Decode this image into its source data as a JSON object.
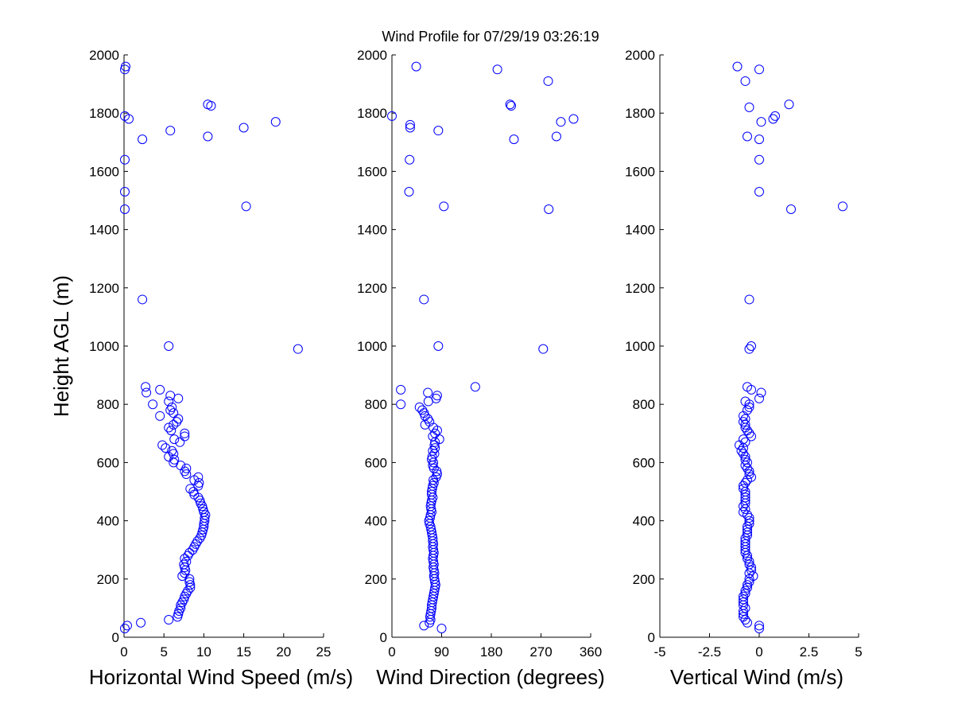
{
  "title": "Wind Profile for  07/29/19 03:26:19",
  "ylabel": "Height AGL (m)",
  "chart_data": [
    {
      "type": "scatter",
      "xlabel": "Horizontal Wind Speed (m/s)",
      "ylabel": "Height AGL (m)",
      "xlim": [
        0,
        25
      ],
      "ylim": [
        0,
        2000
      ],
      "xticks": [
        0,
        5,
        10,
        15,
        20,
        25
      ],
      "xtick_labels": [
        "0",
        "5",
        "10",
        "15",
        "20",
        "25"
      ],
      "yticks": [
        0,
        200,
        400,
        600,
        800,
        1000,
        1200,
        1400,
        1600,
        1800,
        2000
      ],
      "ytick_labels": [
        "0",
        "200",
        "400",
        "600",
        "800",
        "1000",
        "1200",
        "1400",
        "1600",
        "1800",
        "2000"
      ],
      "color": "#0000ff",
      "marker": "circle-open",
      "points": [
        [
          0.2,
          1960
        ],
        [
          0.1,
          1950
        ],
        [
          10.5,
          1830
        ],
        [
          10.9,
          1825
        ],
        [
          0.1,
          1790
        ],
        [
          0.6,
          1780
        ],
        [
          19,
          1770
        ],
        [
          15,
          1750
        ],
        [
          5.8,
          1740
        ],
        [
          10.5,
          1720
        ],
        [
          2.3,
          1710
        ],
        [
          0.1,
          1640
        ],
        [
          0.1,
          1530
        ],
        [
          15.3,
          1480
        ],
        [
          0.1,
          1470
        ],
        [
          2.3,
          1160
        ],
        [
          5.6,
          1000
        ],
        [
          21.8,
          990
        ],
        [
          2.7,
          860
        ],
        [
          4.5,
          850
        ],
        [
          2.8,
          840
        ],
        [
          5.8,
          830
        ],
        [
          6.8,
          820
        ],
        [
          5.6,
          810
        ],
        [
          3.6,
          800
        ],
        [
          6,
          790
        ],
        [
          5.8,
          780
        ],
        [
          6.2,
          770
        ],
        [
          4.5,
          760
        ],
        [
          6.8,
          750
        ],
        [
          6.6,
          740
        ],
        [
          6.2,
          730
        ],
        [
          5.6,
          720
        ],
        [
          5.9,
          710
        ],
        [
          7.6,
          700
        ],
        [
          7.6,
          690
        ],
        [
          6.3,
          680
        ],
        [
          7,
          670
        ],
        [
          4.8,
          660
        ],
        [
          5.2,
          650
        ],
        [
          6,
          640
        ],
        [
          6.2,
          630
        ],
        [
          5.6,
          620
        ],
        [
          6.3,
          610
        ],
        [
          6.2,
          600
        ],
        [
          7.1,
          590
        ],
        [
          7.8,
          580
        ],
        [
          7.6,
          570
        ],
        [
          7.8,
          560
        ],
        [
          9.3,
          550
        ],
        [
          8.8,
          540
        ],
        [
          9.4,
          530
        ],
        [
          9.3,
          520
        ],
        [
          8.3,
          510
        ],
        [
          8.7,
          500
        ],
        [
          8.8,
          490
        ],
        [
          9.3,
          480
        ],
        [
          9.5,
          470
        ],
        [
          9.6,
          460
        ],
        [
          9.8,
          450
        ],
        [
          9.9,
          440
        ],
        [
          10,
          430
        ],
        [
          10.2,
          420
        ],
        [
          10.1,
          410
        ],
        [
          10.1,
          400
        ],
        [
          10,
          390
        ],
        [
          10,
          380
        ],
        [
          9.9,
          370
        ],
        [
          9.8,
          360
        ],
        [
          9.7,
          350
        ],
        [
          9.5,
          340
        ],
        [
          9.2,
          330
        ],
        [
          9,
          320
        ],
        [
          8.8,
          310
        ],
        [
          8.6,
          300
        ],
        [
          8.2,
          290
        ],
        [
          8,
          280
        ],
        [
          7.6,
          270
        ],
        [
          7.8,
          260
        ],
        [
          7.5,
          250
        ],
        [
          7.6,
          240
        ],
        [
          7.7,
          230
        ],
        [
          7.6,
          220
        ],
        [
          7.3,
          210
        ],
        [
          8.2,
          200
        ],
        [
          8.2,
          190
        ],
        [
          8.3,
          180
        ],
        [
          8.3,
          170
        ],
        [
          8,
          160
        ],
        [
          7.8,
          150
        ],
        [
          7.6,
          140
        ],
        [
          7.5,
          130
        ],
        [
          7.3,
          120
        ],
        [
          7.1,
          110
        ],
        [
          7.1,
          100
        ],
        [
          6.9,
          90
        ],
        [
          6.8,
          80
        ],
        [
          6.7,
          70
        ],
        [
          5.6,
          60
        ],
        [
          2.1,
          50
        ],
        [
          0.4,
          40
        ],
        [
          0.1,
          30
        ]
      ]
    },
    {
      "type": "scatter",
      "xlabel": "Wind Direction (degrees)",
      "xlim": [
        0,
        360
      ],
      "ylim": [
        0,
        2000
      ],
      "xticks": [
        0,
        90,
        180,
        270,
        360
      ],
      "xtick_labels": [
        "0",
        "90",
        "180",
        "270",
        "360"
      ],
      "yticks": [
        0,
        200,
        400,
        600,
        800,
        1000,
        1200,
        1400,
        1600,
        1800,
        2000
      ],
      "ytick_labels": [
        "0",
        "200",
        "400",
        "600",
        "800",
        "1000",
        "1200",
        "1400",
        "1600",
        "1800",
        "2000"
      ],
      "color": "#0000ff",
      "marker": "circle-open",
      "points": [
        [
          44,
          1960
        ],
        [
          191,
          1950
        ],
        [
          283,
          1910
        ],
        [
          214,
          1830
        ],
        [
          216,
          1825
        ],
        [
          0,
          1790
        ],
        [
          329,
          1780
        ],
        [
          306,
          1770
        ],
        [
          33,
          1760
        ],
        [
          33,
          1750
        ],
        [
          84,
          1740
        ],
        [
          298,
          1720
        ],
        [
          221,
          1710
        ],
        [
          32,
          1640
        ],
        [
          31,
          1530
        ],
        [
          94,
          1480
        ],
        [
          284,
          1470
        ],
        [
          58,
          1160
        ],
        [
          84,
          1000
        ],
        [
          274,
          990
        ],
        [
          151,
          860
        ],
        [
          16,
          850
        ],
        [
          65,
          840
        ],
        [
          82,
          830
        ],
        [
          80,
          820
        ],
        [
          66,
          810
        ],
        [
          16,
          800
        ],
        [
          50,
          790
        ],
        [
          55,
          780
        ],
        [
          58,
          770
        ],
        [
          60,
          760
        ],
        [
          65,
          750
        ],
        [
          68,
          740
        ],
        [
          60,
          730
        ],
        [
          75,
          720
        ],
        [
          82,
          710
        ],
        [
          78,
          700
        ],
        [
          74,
          690
        ],
        [
          86,
          680
        ],
        [
          78,
          670
        ],
        [
          77,
          660
        ],
        [
          78,
          650
        ],
        [
          74,
          640
        ],
        [
          77,
          630
        ],
        [
          73,
          620
        ],
        [
          72,
          610
        ],
        [
          75,
          600
        ],
        [
          74,
          590
        ],
        [
          76,
          580
        ],
        [
          81,
          570
        ],
        [
          82,
          560
        ],
        [
          80,
          550
        ],
        [
          75,
          540
        ],
        [
          76,
          530
        ],
        [
          74,
          520
        ],
        [
          73,
          510
        ],
        [
          72,
          500
        ],
        [
          72,
          490
        ],
        [
          74,
          480
        ],
        [
          72,
          470
        ],
        [
          71,
          460
        ],
        [
          70,
          450
        ],
        [
          71,
          440
        ],
        [
          72,
          430
        ],
        [
          70,
          420
        ],
        [
          69,
          410
        ],
        [
          67,
          400
        ],
        [
          68,
          390
        ],
        [
          70,
          380
        ],
        [
          71,
          370
        ],
        [
          72,
          360
        ],
        [
          73,
          350
        ],
        [
          74,
          340
        ],
        [
          74,
          330
        ],
        [
          75,
          320
        ],
        [
          74,
          310
        ],
        [
          75,
          300
        ],
        [
          76,
          290
        ],
        [
          75,
          280
        ],
        [
          74,
          270
        ],
        [
          75,
          260
        ],
        [
          76,
          250
        ],
        [
          75,
          240
        ],
        [
          76,
          230
        ],
        [
          77,
          220
        ],
        [
          76,
          210
        ],
        [
          77,
          200
        ],
        [
          78,
          190
        ],
        [
          79,
          180
        ],
        [
          78,
          170
        ],
        [
          77,
          160
        ],
        [
          76,
          150
        ],
        [
          75,
          140
        ],
        [
          74,
          130
        ],
        [
          73,
          120
        ],
        [
          72,
          110
        ],
        [
          72,
          100
        ],
        [
          71,
          90
        ],
        [
          70,
          80
        ],
        [
          69,
          70
        ],
        [
          70,
          60
        ],
        [
          68,
          50
        ],
        [
          58,
          40
        ],
        [
          90,
          30
        ]
      ]
    },
    {
      "type": "scatter",
      "xlabel": "Vertical Wind (m/s)",
      "xlim": [
        -5,
        5
      ],
      "ylim": [
        0,
        2000
      ],
      "xticks": [
        -5,
        -2.5,
        0,
        2.5,
        5
      ],
      "xtick_labels": [
        "-5",
        "-2.5",
        "0",
        "2.5",
        "5"
      ],
      "yticks": [
        0,
        200,
        400,
        600,
        800,
        1000,
        1200,
        1400,
        1600,
        1800,
        2000
      ],
      "ytick_labels": [
        "0",
        "200",
        "400",
        "600",
        "800",
        "1000",
        "1200",
        "1400",
        "1600",
        "1800",
        "2000"
      ],
      "color": "#0000ff",
      "marker": "circle-open",
      "points": [
        [
          -1.1,
          1960
        ],
        [
          0,
          1950
        ],
        [
          -0.7,
          1910
        ],
        [
          1.5,
          1830
        ],
        [
          -0.5,
          1820
        ],
        [
          0.8,
          1790
        ],
        [
          0.7,
          1780
        ],
        [
          0.1,
          1770
        ],
        [
          -0.6,
          1720
        ],
        [
          0,
          1710
        ],
        [
          0,
          1640
        ],
        [
          0,
          1530
        ],
        [
          4.2,
          1480
        ],
        [
          1.6,
          1470
        ],
        [
          -0.5,
          1160
        ],
        [
          -0.4,
          1000
        ],
        [
          -0.5,
          990
        ],
        [
          -0.6,
          860
        ],
        [
          -0.4,
          850
        ],
        [
          0.1,
          840
        ],
        [
          0,
          820
        ],
        [
          -0.7,
          810
        ],
        [
          -0.5,
          800
        ],
        [
          -0.5,
          790
        ],
        [
          -0.6,
          780
        ],
        [
          -0.8,
          760
        ],
        [
          -0.7,
          750
        ],
        [
          -0.8,
          740
        ],
        [
          -0.7,
          730
        ],
        [
          -0.7,
          720
        ],
        [
          -0.6,
          710
        ],
        [
          -0.5,
          700
        ],
        [
          -0.4,
          690
        ],
        [
          -0.8,
          680
        ],
        [
          -0.7,
          670
        ],
        [
          -1,
          660
        ],
        [
          -0.8,
          650
        ],
        [
          -0.9,
          640
        ],
        [
          -0.8,
          630
        ],
        [
          -0.7,
          620
        ],
        [
          -0.7,
          610
        ],
        [
          -0.6,
          600
        ],
        [
          -0.7,
          590
        ],
        [
          -0.6,
          580
        ],
        [
          -0.5,
          570
        ],
        [
          -0.5,
          560
        ],
        [
          -0.4,
          550
        ],
        [
          -0.6,
          540
        ],
        [
          -0.7,
          530
        ],
        [
          -0.8,
          520
        ],
        [
          -0.8,
          510
        ],
        [
          -0.7,
          500
        ],
        [
          -0.7,
          490
        ],
        [
          -0.7,
          480
        ],
        [
          -0.7,
          470
        ],
        [
          -0.7,
          460
        ],
        [
          -0.8,
          450
        ],
        [
          -0.7,
          440
        ],
        [
          -0.8,
          430
        ],
        [
          -0.6,
          420
        ],
        [
          -0.5,
          410
        ],
        [
          -0.5,
          400
        ],
        [
          -0.5,
          390
        ],
        [
          -0.6,
          380
        ],
        [
          -0.6,
          370
        ],
        [
          -0.6,
          360
        ],
        [
          -0.6,
          350
        ],
        [
          -0.7,
          340
        ],
        [
          -0.7,
          330
        ],
        [
          -0.7,
          320
        ],
        [
          -0.7,
          310
        ],
        [
          -0.7,
          300
        ],
        [
          -0.7,
          290
        ],
        [
          -0.6,
          280
        ],
        [
          -0.6,
          270
        ],
        [
          -0.5,
          260
        ],
        [
          -0.5,
          250
        ],
        [
          -0.4,
          240
        ],
        [
          -0.4,
          230
        ],
        [
          -0.5,
          220
        ],
        [
          -0.3,
          210
        ],
        [
          -0.5,
          200
        ],
        [
          -0.5,
          190
        ],
        [
          -0.6,
          180
        ],
        [
          -0.6,
          170
        ],
        [
          -0.7,
          160
        ],
        [
          -0.7,
          150
        ],
        [
          -0.8,
          140
        ],
        [
          -0.8,
          130
        ],
        [
          -0.8,
          120
        ],
        [
          -0.8,
          110
        ],
        [
          -0.7,
          100
        ],
        [
          -0.8,
          90
        ],
        [
          -0.8,
          80
        ],
        [
          -0.8,
          70
        ],
        [
          -0.7,
          60
        ],
        [
          -0.6,
          50
        ],
        [
          0,
          40
        ],
        [
          0,
          30
        ]
      ]
    }
  ]
}
